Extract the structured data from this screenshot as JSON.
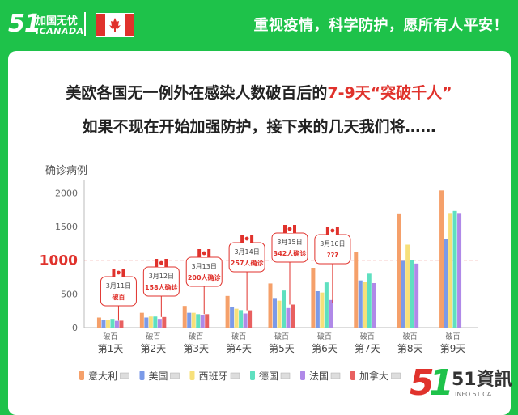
{
  "header": {
    "logo_number": "51",
    "logo_cn": "加国无忧",
    "logo_en": ".CANADA",
    "slogan": "重视疫情，科学防护，愿所有人平安！",
    "colors": {
      "brand_green": "#1ec24a",
      "flag_red": "#e0322c"
    },
    "icons": [
      "canada-flag-icon"
    ]
  },
  "headline": {
    "line1_prefix": "美欧各国无一例外在感染人数破百后的",
    "line1_highlight": "7-9天“突破千人”",
    "line2": "如果不现在开始加强防护，接下来的几天我们将……"
  },
  "chart_data": {
    "type": "bar",
    "ylabel": "确诊病例",
    "ylim": [
      0,
      2100
    ],
    "yticks": [
      0,
      500,
      1000,
      1500,
      2000
    ],
    "threshold": {
      "value": 1000,
      "label": "1000",
      "style": "dashed",
      "color": "#e0322c"
    },
    "categories": [
      "第1天",
      "第2天",
      "第3天",
      "第4天",
      "第5天",
      "第6天",
      "第7天",
      "第8天",
      "第9天"
    ],
    "category_notes": [
      "破百",
      "破百",
      "破百",
      "破百",
      "破百",
      "破百",
      "破百",
      "破百",
      "破百"
    ],
    "series": [
      {
        "name": "意大利",
        "color": "#f5a06a",
        "values": [
          150,
          220,
          322,
          470,
          655,
          888,
          1128,
          1694,
          2036
        ]
      },
      {
        "name": "美国",
        "color": "#7b9ae8",
        "values": [
          110,
          150,
          220,
          310,
          440,
          540,
          700,
          990,
          1320
        ]
      },
      {
        "name": "西班牙",
        "color": "#f7e07a",
        "values": [
          115,
          165,
          220,
          280,
          400,
          520,
          680,
          1230,
          1700
        ]
      },
      {
        "name": "德国",
        "color": "#5fe0c0",
        "values": [
          130,
          165,
          200,
          260,
          550,
          670,
          800,
          1000,
          1730
        ]
      },
      {
        "name": "法国",
        "color": "#b089e8",
        "values": [
          100,
          130,
          190,
          210,
          290,
          410,
          660,
          950,
          1700
        ]
      },
      {
        "name": "加拿大",
        "color": "#e86060",
        "values": [
          103,
          158,
          200,
          257,
          342,
          null,
          null,
          null,
          null
        ]
      }
    ],
    "legend_position": "bottom",
    "grid": false,
    "annotations": [
      {
        "day_index": 0,
        "date": "3月11日",
        "text": "破百",
        "value": 103
      },
      {
        "day_index": 1,
        "date": "3月12日",
        "text": "158人确诊",
        "value": 158
      },
      {
        "day_index": 2,
        "date": "3月13日",
        "text": "200人确诊",
        "value": 200
      },
      {
        "day_index": 3,
        "date": "3月14日",
        "text": "257人确诊",
        "value": 257
      },
      {
        "day_index": 4,
        "date": "3月15日",
        "text": "342人确诊",
        "value": 342
      },
      {
        "day_index": 5,
        "date": "3月16日",
        "text": "???",
        "value": null
      }
    ]
  },
  "watermark": {
    "text": "51資訊",
    "sub": "INFO.51.CA"
  }
}
